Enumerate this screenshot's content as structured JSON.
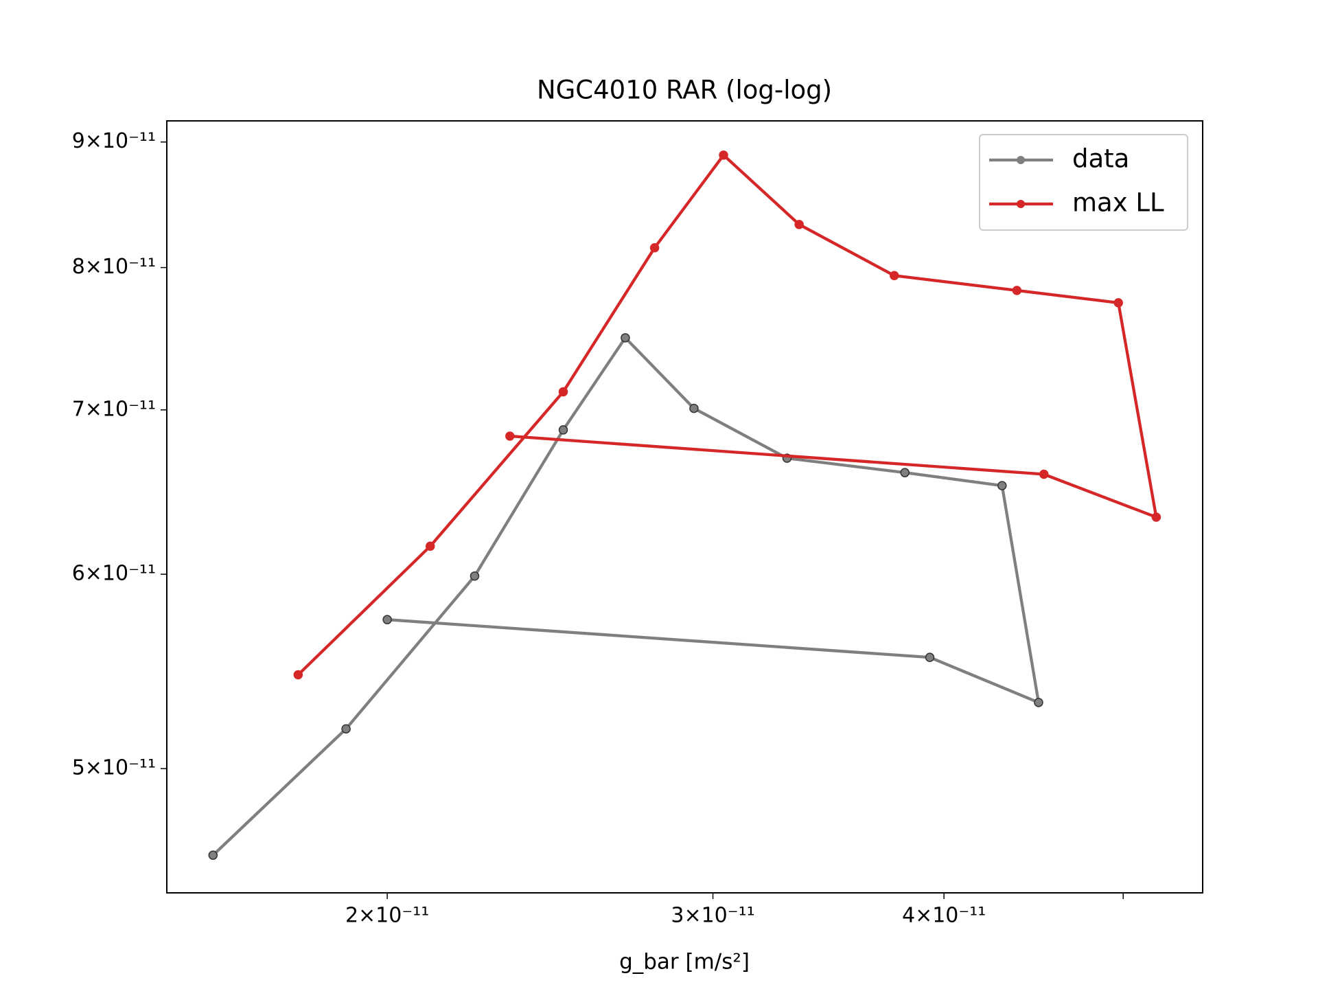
{
  "chart_data": {
    "type": "line",
    "title": "NGC4010 RAR (log-log)",
    "x_label": "g_bar [m/s²]",
    "xscale": "log",
    "yscale": "log",
    "legend": "upper right",
    "xlim": [
      1.52e-11,
      5.52e-11
    ],
    "ylim": [
      4.45e-11,
      9.18e-11
    ],
    "xticks": [
      {
        "value": 2e-11,
        "label": "2×10⁻¹¹"
      },
      {
        "value": 3e-11,
        "label": "3×10⁻¹¹"
      },
      {
        "value": 4e-11,
        "label": "4×10⁻¹¹"
      },
      {
        "value": 5e-11,
        "label": null
      }
    ],
    "yticks": [
      {
        "value": 5e-11,
        "label": "5×10⁻¹¹"
      },
      {
        "value": 6e-11,
        "label": "6×10⁻¹¹"
      },
      {
        "value": 7e-11,
        "label": "7×10⁻¹¹"
      },
      {
        "value": 8e-11,
        "label": "8×10⁻¹¹"
      },
      {
        "value": 9e-11,
        "label": "9×10⁻¹¹"
      }
    ],
    "series": [
      {
        "name": "data",
        "color": "#7f7f7f",
        "x": [
          1.61e-11,
          1.9e-11,
          2.23e-11,
          2.49e-11,
          2.69e-11,
          2.93e-11,
          3.29e-11,
          3.81e-11,
          4.3e-11,
          4.5e-11,
          3.93e-11,
          2e-11
        ],
        "values": [
          4.61e-11,
          5.19e-11,
          5.99e-11,
          6.87e-11,
          7.49e-11,
          7.01e-11,
          6.69e-11,
          6.6e-11,
          6.52e-11,
          5.32e-11,
          5.55e-11,
          5.75e-11
        ]
      },
      {
        "name": "max LL",
        "color": "#d62728",
        "x": [
          1.79e-11,
          2.11e-11,
          2.49e-11,
          2.79e-11,
          3.04e-11,
          3.34e-11,
          3.76e-11,
          4.38e-11,
          4.97e-11,
          5.21e-11,
          4.53e-11,
          2.33e-11
        ],
        "values": [
          5.46e-11,
          6.16e-11,
          7.12e-11,
          8.15e-11,
          8.89e-11,
          8.33e-11,
          7.94e-11,
          7.83e-11,
          7.74e-11,
          6.33e-11,
          6.59e-11,
          6.83e-11
        ]
      }
    ]
  }
}
